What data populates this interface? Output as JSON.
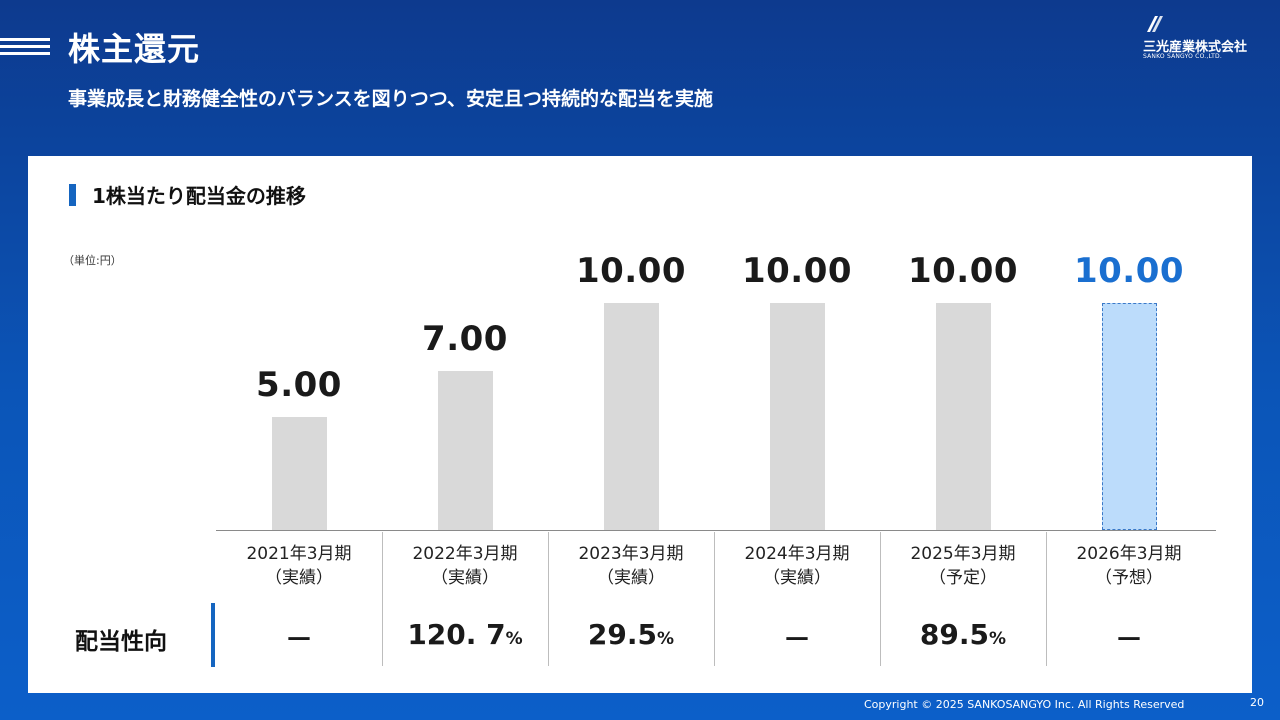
{
  "header": {
    "title": "株主還元",
    "subtitle": "事業成長と財務健全性のバランスを図りつつ、安定且つ持続的な配当を実施"
  },
  "logo": {
    "name_jp": "三光産業株式会社",
    "name_en": "SANKO SANGYO CO.,LTD."
  },
  "section": {
    "title": "1株当たり配当金の推移",
    "unit": "（単位:円）"
  },
  "chart_data": {
    "type": "bar",
    "title": "1株当たり配当金の推移",
    "unit": "（単位:円）",
    "categories": [
      "2021年3月期（実績）",
      "2022年3月期（実績）",
      "2023年3月期（実績）",
      "2024年3月期（実績）",
      "2025年3月期（予定）",
      "2026年3月期（予想）"
    ],
    "category_lines": [
      [
        "2021年3月期",
        "（実績）"
      ],
      [
        "2022年3月期",
        "（実績）"
      ],
      [
        "2023年3月期",
        "（実績）"
      ],
      [
        "2024年3月期",
        "（実績）"
      ],
      [
        "2025年3月期",
        "（予定）"
      ],
      [
        "2026年3月期",
        "（予想）"
      ]
    ],
    "values": [
      5.0,
      7.0,
      10.0,
      10.0,
      10.0,
      10.0
    ],
    "value_labels": [
      "5.00",
      "7.00",
      "10.00",
      "10.00",
      "10.00",
      "10.00"
    ],
    "forecast": [
      false,
      false,
      false,
      false,
      false,
      true
    ],
    "ylim": [
      0,
      10
    ],
    "grid": false,
    "colors": {
      "bar": "#d9d9d9",
      "forecast_bar": "#bcdcfb",
      "forecast_text": "#1a6fd0"
    }
  },
  "payout": {
    "label": "配当性向",
    "values": [
      {
        "num": "－",
        "pct": ""
      },
      {
        "num": "120. 7",
        "pct": "%"
      },
      {
        "num": "29.5",
        "pct": "%"
      },
      {
        "num": "－",
        "pct": ""
      },
      {
        "num": "89.5",
        "pct": "%"
      },
      {
        "num": "－",
        "pct": ""
      }
    ]
  },
  "footer": {
    "copyright": "Copyright © 2025  SANKOSANGYO Inc. All Rights Reserved",
    "page": "20"
  }
}
